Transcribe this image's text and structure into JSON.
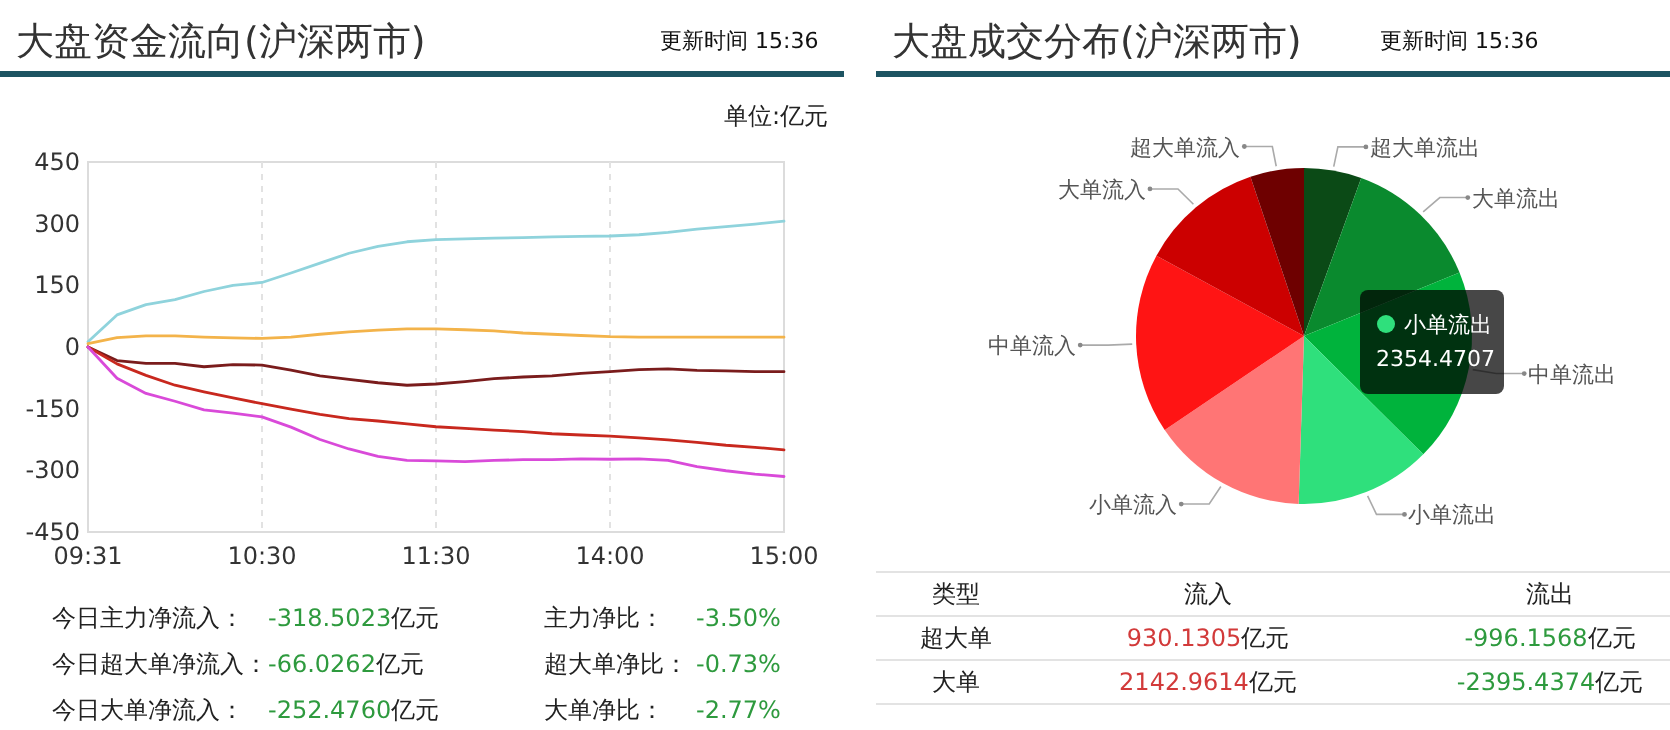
{
  "chart_data": [
    {
      "type": "line",
      "title": "大盘资金流向(沪深两市)",
      "subtitle": "更新时间 15:36",
      "ylabel": "单位:亿元",
      "categories": [
        "09:31",
        null,
        null,
        null,
        null,
        null,
        "10:30",
        null,
        null,
        null,
        null,
        null,
        "11:30",
        null,
        null,
        null,
        null,
        null,
        "14:00",
        null,
        null,
        null,
        null,
        null,
        "15:00"
      ],
      "ylim": [
        -450,
        450
      ],
      "yticks": [
        -450,
        -300,
        -150,
        0,
        150,
        300,
        450
      ],
      "grid": "x",
      "series": [
        {
          "color": "#8fd3dc",
          "values": [
            13,
            78,
            103,
            115,
            135,
            150,
            157,
            180,
            204,
            228,
            245,
            256,
            261,
            263,
            265,
            266,
            268,
            269,
            270,
            273,
            279,
            287,
            293,
            299,
            306
          ]
        },
        {
          "color": "#f3b34a",
          "values": [
            8,
            23,
            27,
            27,
            24,
            22,
            21,
            24,
            31,
            37,
            41,
            44,
            44,
            42,
            39,
            34,
            31,
            28,
            25,
            24,
            24,
            24,
            24,
            24,
            24
          ]
        },
        {
          "color": "#7a1c1c",
          "values": [
            0,
            -33,
            -40,
            -40,
            -48,
            -43,
            -44,
            -56,
            -70,
            -79,
            -87,
            -93,
            -90,
            -84,
            -77,
            -73,
            -70,
            -64,
            -60,
            -55,
            -53,
            -57,
            -58,
            -60,
            -60
          ]
        },
        {
          "color": "#c8281e",
          "values": [
            0,
            -41,
            -69,
            -93,
            -109,
            -124,
            -138,
            -151,
            -164,
            -174,
            -180,
            -187,
            -194,
            -198,
            -202,
            -206,
            -211,
            -214,
            -217,
            -221,
            -226,
            -232,
            -239,
            -244,
            -250
          ]
        },
        {
          "color": "#d94ad9",
          "values": [
            0,
            -76,
            -113,
            -132,
            -153,
            -161,
            -170,
            -195,
            -225,
            -248,
            -266,
            -276,
            -277,
            -279,
            -276,
            -274,
            -274,
            -272,
            -273,
            -272,
            -276,
            -291,
            -301,
            -309,
            -315
          ]
        }
      ],
      "annotations": [
        "今日主力净流入：",
        "-318.5023亿元",
        "主力净比：",
        "-3.50%",
        "今日超大单净流入：",
        "-66.0262亿元",
        "超大单净比：",
        "-0.73%",
        "今日大单净流入：",
        "-252.4760亿元",
        "大单净比：",
        "-2.77%"
      ]
    },
    {
      "type": "pie",
      "title": "大盘成交分布(沪深两市)",
      "subtitle": "更新时间 15:36",
      "categories": [
        "超大单流出",
        "大单流出",
        "中单流出",
        "小单流出",
        "小单流入",
        "中单流入",
        "大单流入",
        "超大单流入"
      ],
      "values": [
        996.1568,
        2395.4374,
        3350,
        2354.4707,
        2710,
        3130,
        2142.9614,
        930.1305
      ],
      "colors": [
        "#0b4a16",
        "#0a8a2e",
        "#00b33c",
        "#2fe07c",
        "#ff7575",
        "#ff1414",
        "#cc0000",
        "#6e0000"
      ],
      "value_labels": [
        null,
        null,
        null,
        "2354.4707",
        null,
        null,
        null,
        null
      ],
      "annotations": [
        "类型",
        "流入",
        "流出",
        "超大单",
        "930.1305亿元",
        "-996.1568亿元",
        "大单",
        "2142.9614亿元",
        "-2395.4374亿元"
      ]
    }
  ]
}
